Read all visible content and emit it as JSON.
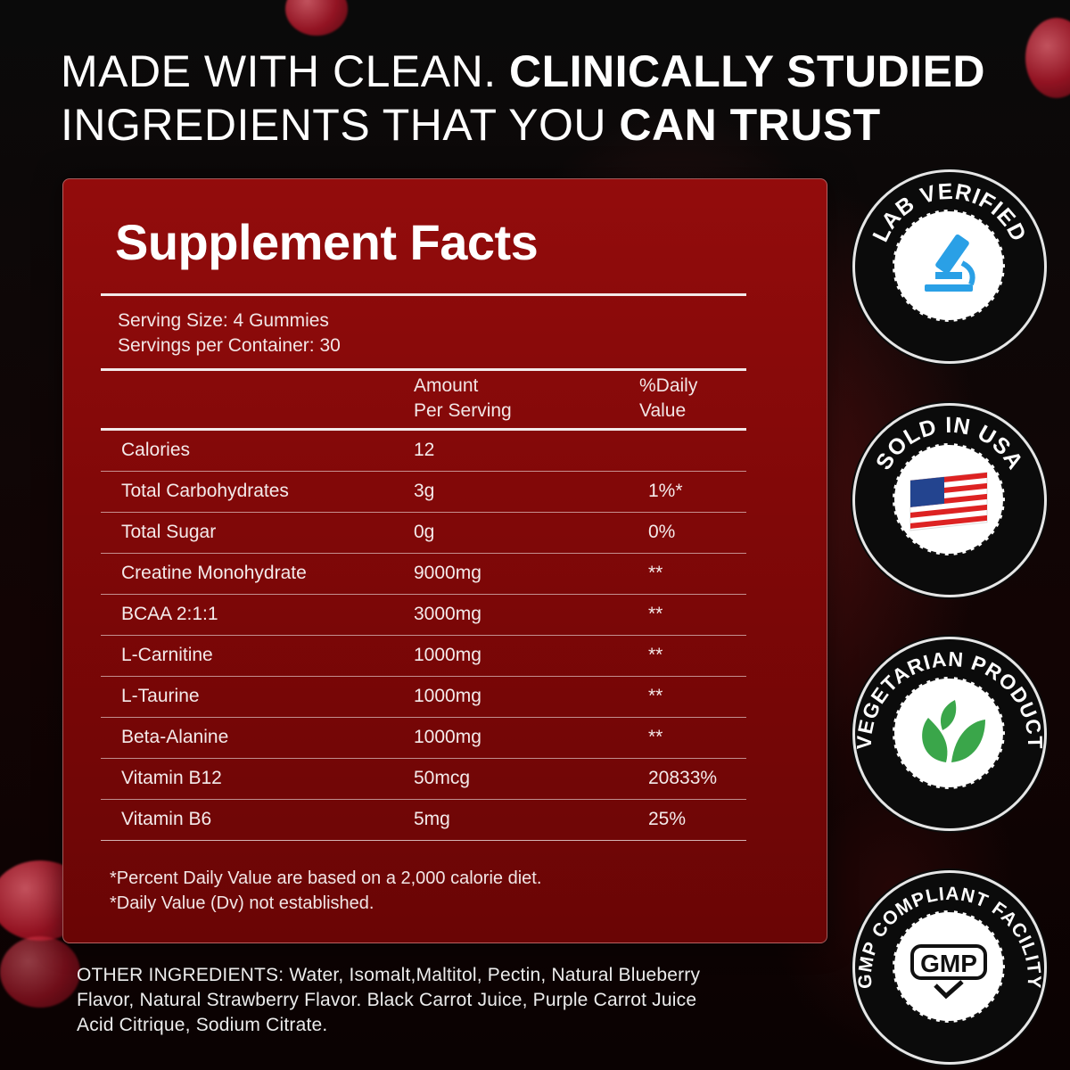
{
  "headline": {
    "line1_regular": "MADE WITH CLEAN. ",
    "line1_bold": "CLINICALLY STUDIED",
    "line2_regular": "INGREDIENTS THAT YOU ",
    "line2_bold": "CAN TRUST"
  },
  "facts": {
    "title": "Supplement Facts",
    "serving_size": "Serving Size: 4 Gummies",
    "servings_per_container": "Servings per Container: 30",
    "header_amount_1": "Amount",
    "header_amount_2": "Per Serving",
    "header_dv_1": "%Daily",
    "header_dv_2": "Value",
    "rows": [
      {
        "name": "Calories",
        "amount": "12",
        "dv": ""
      },
      {
        "name": "Total Carbohydrates",
        "amount": "3g",
        "dv": "1%*"
      },
      {
        "name": "Total Sugar",
        "amount": "0g",
        "dv": "0%"
      },
      {
        "name": "Creatine Monohydrate",
        "amount": "9000mg",
        "dv": "**"
      },
      {
        "name": "BCAA 2:1:1",
        "amount": "3000mg",
        "dv": "**"
      },
      {
        "name": "L-Carnitine",
        "amount": "1000mg",
        "dv": "**"
      },
      {
        "name": "L-Taurine",
        "amount": "1000mg",
        "dv": "**"
      },
      {
        "name": "Beta-Alanine",
        "amount": "1000mg",
        "dv": "**"
      },
      {
        "name": "Vitamin B12",
        "amount": "50mcg",
        "dv": "20833%"
      },
      {
        "name": "Vitamin B6",
        "amount": "5mg",
        "dv": "25%"
      }
    ],
    "footnote_1": "*Percent Daily Value are based on a 2,000 calorie diet.",
    "footnote_2": "*Daily Value (Dv) not established."
  },
  "other_ingredients": {
    "line1": "OTHER INGREDIENTS: Water, Isomalt,Maltitol, Pectin, Natural Blueberry",
    "line2": "Flavor, Natural Strawberry Flavor. Black Carrot Juice, Purple Carrot Juice",
    "line3": "Acid Citrique, Sodium Citrate."
  },
  "badges": [
    {
      "label": "LAB VERIFIED",
      "icon": "microscope-icon"
    },
    {
      "label": "SOLD IN USA",
      "icon": "us-flag-icon"
    },
    {
      "label": "VEGETARIAN PRODUCT",
      "icon": "leaves-icon"
    },
    {
      "label": "GMP COMPLIANT FACILITY",
      "icon": "gmp-check-icon",
      "icon_text": "GMP"
    }
  ],
  "colors": {
    "panel": "#930c0c",
    "background": "#050505",
    "badge_blue": "#2aa0e6",
    "badge_green": "#3aa64a"
  }
}
